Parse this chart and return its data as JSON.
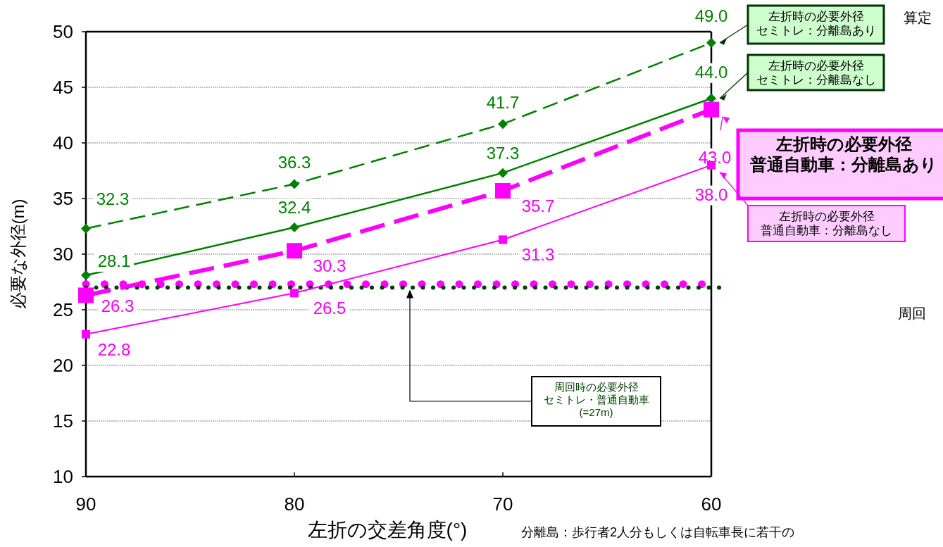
{
  "chart_data": {
    "type": "line",
    "xlabel": "左折の交差角度(°)",
    "ylabel": "必要な外径(m)",
    "x": [
      90,
      80,
      70,
      60
    ],
    "xlim": [
      90,
      60
    ],
    "xticks": [
      90,
      80,
      70,
      60
    ],
    "ylim": [
      10,
      50
    ],
    "yticks": [
      10,
      15,
      20,
      25,
      30,
      35,
      40,
      45,
      50
    ],
    "grid": "y",
    "series": [
      {
        "name": "左折時の必要外径セミトレ：分離島あり",
        "color": "#008000",
        "values": [
          32.3,
          36.3,
          41.7,
          49.0
        ],
        "value_labels": [
          "32.3",
          "36.3",
          "41.7",
          "49.0"
        ],
        "line_style": "dashed",
        "marker": "diamond"
      },
      {
        "name": "左折時の必要外径セミトレ：分離島なし",
        "color": "#008000",
        "values": [
          28.1,
          32.4,
          37.3,
          44.0
        ],
        "value_labels": [
          "28.1",
          "32.4",
          "37.3",
          "44.0"
        ],
        "line_style": "solid",
        "marker": "diamond"
      },
      {
        "name": "左折時の必要外径普通自動車：分離島あり",
        "color": "#ff00ff",
        "values": [
          26.3,
          30.3,
          35.7,
          43.0
        ],
        "value_labels": [
          "26.3",
          "30.3",
          "35.7",
          "43.0"
        ],
        "line_style": "dashed",
        "marker": "square"
      },
      {
        "name": "左折時の必要外径普通自動車：分離島なし",
        "color": "#ff00ff",
        "values": [
          22.8,
          26.5,
          31.3,
          38.0
        ],
        "value_labels": [
          "22.8",
          "26.5",
          "31.3",
          "38.0"
        ],
        "line_style": "solid",
        "marker": "square"
      }
    ],
    "ref_lines": [
      {
        "axis": "y",
        "value": 27.3,
        "color": "#ff00ff",
        "line_style": "dotted"
      },
      {
        "axis": "y",
        "value": 27,
        "color": "#004000",
        "line_style": "dotted",
        "label": "周回時の必要外径セミトレ・普通自動車(=27m)"
      }
    ],
    "annotations": [
      "算定",
      "周回",
      "分離島：歩行者2人分もしくは自転車長に若干の"
    ]
  }
}
